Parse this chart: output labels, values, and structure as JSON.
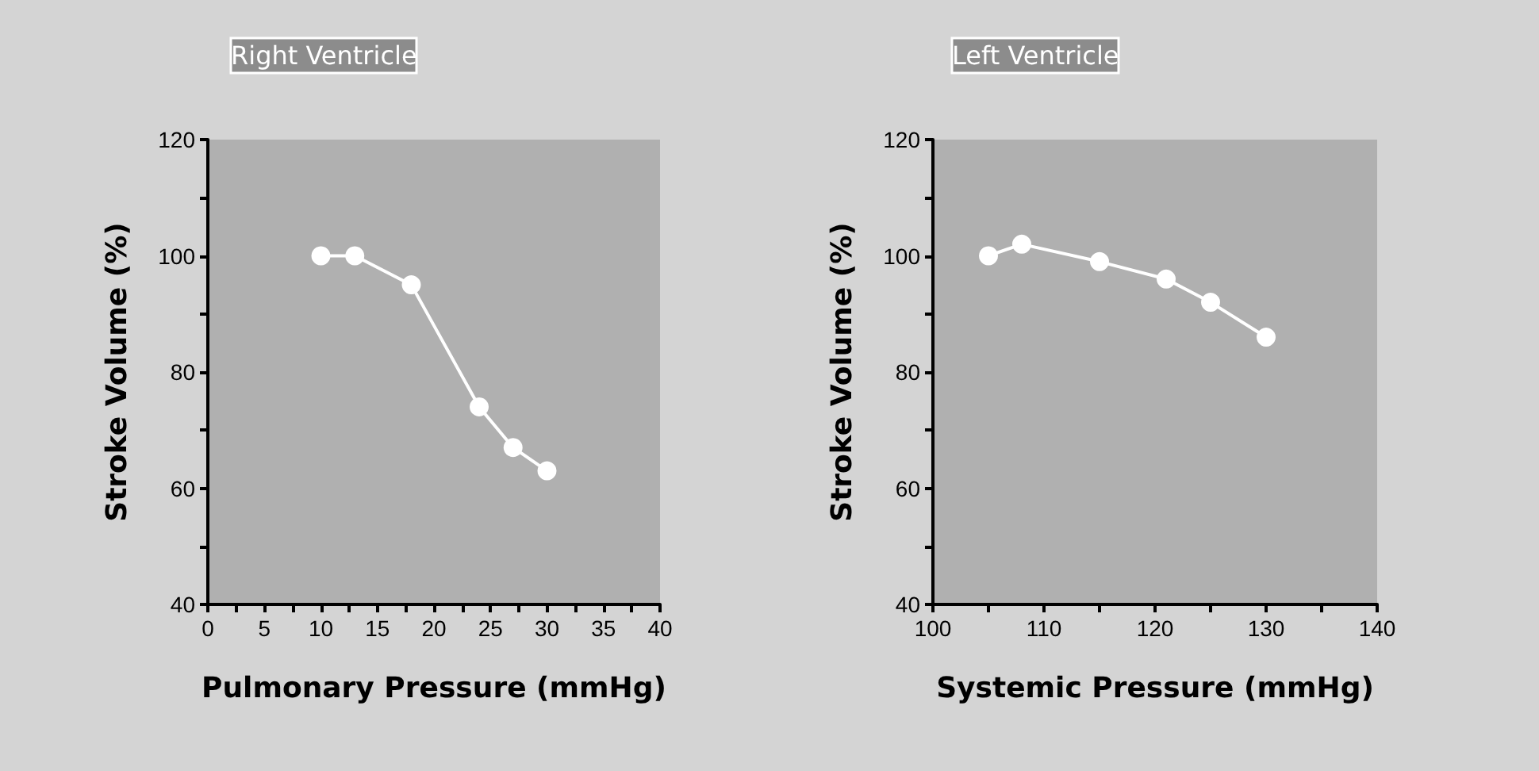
{
  "chart_data": [
    {
      "type": "line",
      "title": "Right Ventricle",
      "xlabel": "Pulmonary Pressure (mmHg)",
      "ylabel": "Stroke Volume (%)",
      "x": [
        10,
        13,
        18,
        24,
        27,
        30
      ],
      "series": [
        {
          "color": "#ffffff",
          "values": [
            100,
            100,
            95,
            74,
            67,
            63
          ]
        }
      ],
      "xlim": [
        0,
        40
      ],
      "xticks": [
        0,
        {
          "value": 2.5,
          "label": null
        },
        5,
        {
          "value": 7.5,
          "label": null
        },
        10,
        {
          "value": 12.5,
          "label": null
        },
        15,
        {
          "value": 17.5,
          "label": null
        },
        20,
        {
          "value": 22.5,
          "label": null
        },
        25,
        {
          "value": 27.5,
          "label": null
        },
        30,
        {
          "value": 32.5,
          "label": null
        },
        35,
        {
          "value": 37.5,
          "label": null
        },
        40
      ],
      "ylim": [
        40,
        120
      ],
      "yticks": [
        40,
        {
          "value": 50,
          "label": null
        },
        60,
        {
          "value": 70,
          "label": null
        },
        80,
        {
          "value": 90,
          "label": null
        },
        100,
        {
          "value": 110,
          "label": null
        },
        120
      ],
      "grid": false,
      "marker": "circle",
      "line_style": "solid"
    },
    {
      "type": "line",
      "title": "Left Ventricle",
      "xlabel": "Systemic Pressure (mmHg)",
      "ylabel": "Stroke Volume (%)",
      "x": [
        105,
        108,
        115,
        121,
        125,
        130
      ],
      "series": [
        {
          "color": "#ffffff",
          "values": [
            100,
            102,
            99,
            96,
            92,
            86
          ]
        }
      ],
      "xlim": [
        100,
        140
      ],
      "xticks": [
        100,
        {
          "value": 105,
          "label": null
        },
        110,
        {
          "value": 115,
          "label": null
        },
        120,
        {
          "value": 125,
          "label": null
        },
        130,
        {
          "value": 135,
          "label": null
        },
        140
      ],
      "ylim": [
        40,
        120
      ],
      "yticks": [
        40,
        {
          "value": 50,
          "label": null
        },
        60,
        {
          "value": 70,
          "label": null
        },
        80,
        {
          "value": 90,
          "label": null
        },
        100,
        {
          "value": 110,
          "label": null
        },
        120
      ],
      "grid": false,
      "marker": "circle",
      "line_style": "solid"
    }
  ]
}
